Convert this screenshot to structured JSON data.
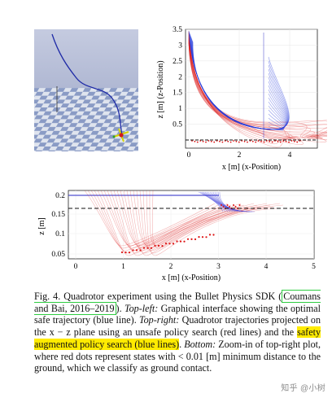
{
  "figure": {
    "sim_panel": {
      "desc_icon": "quadrotor-icon"
    },
    "top_plot": {
      "y_ticks": [
        "0.5",
        "1",
        "1.5",
        "2",
        "2.5",
        "3",
        "3.5"
      ],
      "x_ticks": [
        "0",
        "2",
        "4"
      ],
      "ylabel": "z [m] (z-Position)",
      "xlabel": "x [m] (x-Position)"
    },
    "bottom_plot": {
      "y_ticks": [
        "0.2",
        "0.15",
        "0.1",
        "0.05"
      ],
      "x_ticks": [
        "0",
        "1",
        "2",
        "3",
        "4",
        "5"
      ],
      "ylabel": "z [m]",
      "xlabel": "x [m] (x-Position)"
    }
  },
  "caption": {
    "s1": "Fig. 4.  Quadrotor experiment using the Bullet Physics SDK (",
    "cite": "Coumans and Bai, 2016–2019",
    "s2": "). ",
    "topleft_label": "Top-left:",
    "s3": " Graphical interface showing the optimal safe trajectory (blue line). ",
    "topright_label": "Top-right:",
    "s4": " Quadrotor trajectories projected on the x − z plane using an unsafe policy search (red lines) and the ",
    "highlight": "safety augmented policy search (blue lines)",
    "s5": ". ",
    "bottom_label": "Bottom:",
    "s6": " Zoom-in of top-right plot, where red dots represent states with < 0.01 [m] minimum distance to the ground, which we classify as ground contact."
  },
  "watermark": "知乎 @小树"
}
